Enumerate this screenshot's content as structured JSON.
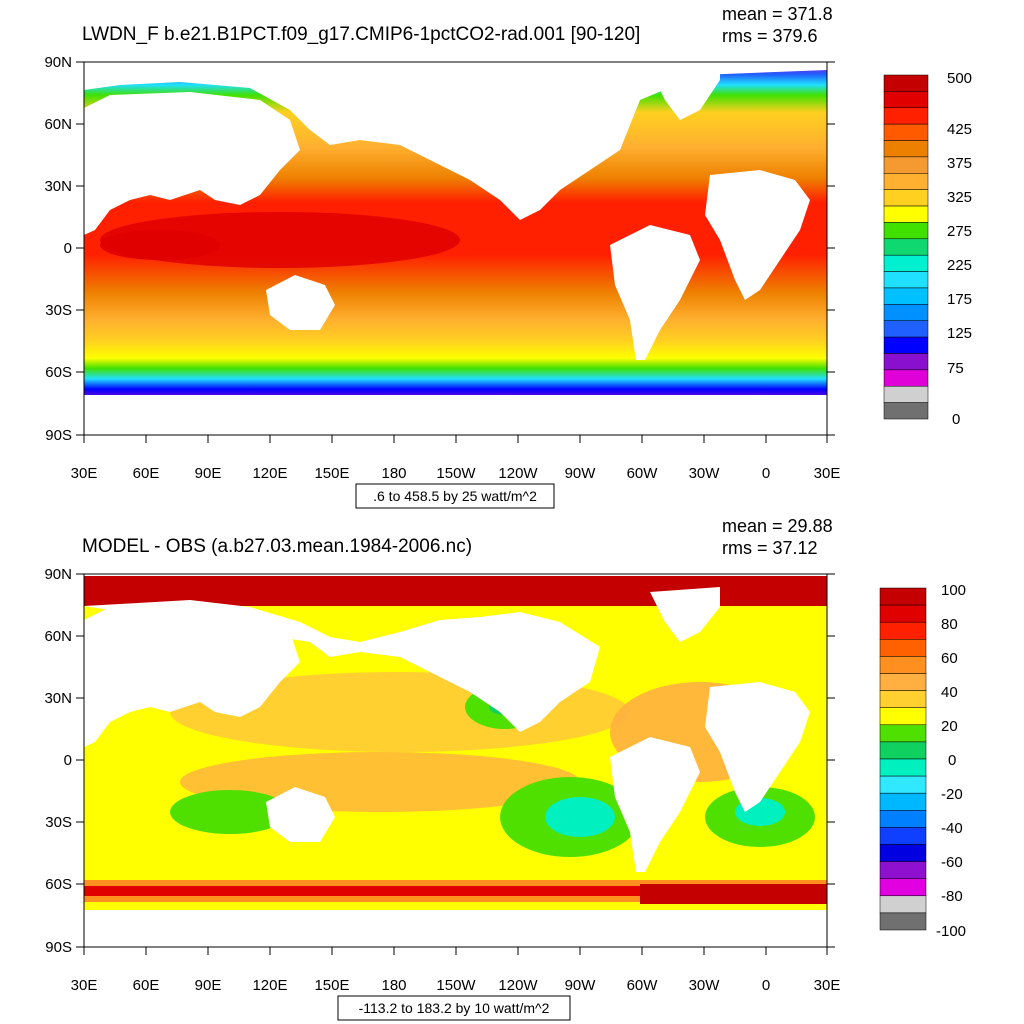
{
  "panels": [
    {
      "title": "LWDN_F b.e21.B1PCT.f09_g17.CMIP6-1pctCO2-rad.001 [90-120]",
      "mean": "mean = 371.8",
      "rms": "rms = 379.6",
      "lat_labels": [
        "90N",
        "60N",
        "30N",
        "0",
        "30S",
        "60S",
        "90S"
      ],
      "lon_labels": [
        "30E",
        "60E",
        "90E",
        "120E",
        "150E",
        "180",
        "150W",
        "120W",
        "90W",
        "60W",
        "30W",
        "0",
        "30E"
      ],
      "range_label": ".6 to 458.5 by 25 watt/m^2",
      "colorbar": {
        "colors": [
          "#c40000",
          "#e00000",
          "#ff2000",
          "#ff5a00",
          "#ee8000",
          "#f59a30",
          "#ffb030",
          "#ffd020",
          "#ffff00",
          "#40e000",
          "#10d870",
          "#00f0d0",
          "#20e0ff",
          "#00c0ff",
          "#0090ff",
          "#2060ff",
          "#0000ff",
          "#8a10d0",
          "#e000d8",
          "#d0d0d0",
          "#707070"
        ],
        "labels": [
          "500",
          "425",
          "375",
          "325",
          "275",
          "225",
          "175",
          "125",
          "75",
          "0"
        ]
      }
    },
    {
      "title": "MODEL - OBS (a.b27.03.mean.1984-2006.nc)",
      "mean": "mean = 29.88",
      "rms": "rms = 37.12",
      "lat_labels": [
        "90N",
        "60N",
        "30N",
        "0",
        "30S",
        "60S",
        "90S"
      ],
      "lon_labels": [
        "30E",
        "60E",
        "90E",
        "120E",
        "150E",
        "180",
        "150W",
        "120W",
        "90W",
        "60W",
        "30W",
        "0",
        "30E"
      ],
      "range_label": "-113.2 to 183.2 by 10 watt/m^2",
      "colorbar": {
        "colors": [
          "#c40000",
          "#e00000",
          "#ff2000",
          "#ff6000",
          "#ff9020",
          "#ffb040",
          "#ffd030",
          "#ffff00",
          "#50e000",
          "#10d060",
          "#00f0c0",
          "#30e8ff",
          "#00b8ff",
          "#0080ff",
          "#1040ff",
          "#0000e0",
          "#9010d0",
          "#e000e0",
          "#d0d0d0",
          "#707070"
        ],
        "labels": [
          "100",
          "80",
          "60",
          "40",
          "20",
          "0",
          "-20",
          "-40",
          "-60",
          "-80",
          "-100"
        ]
      }
    }
  ]
}
